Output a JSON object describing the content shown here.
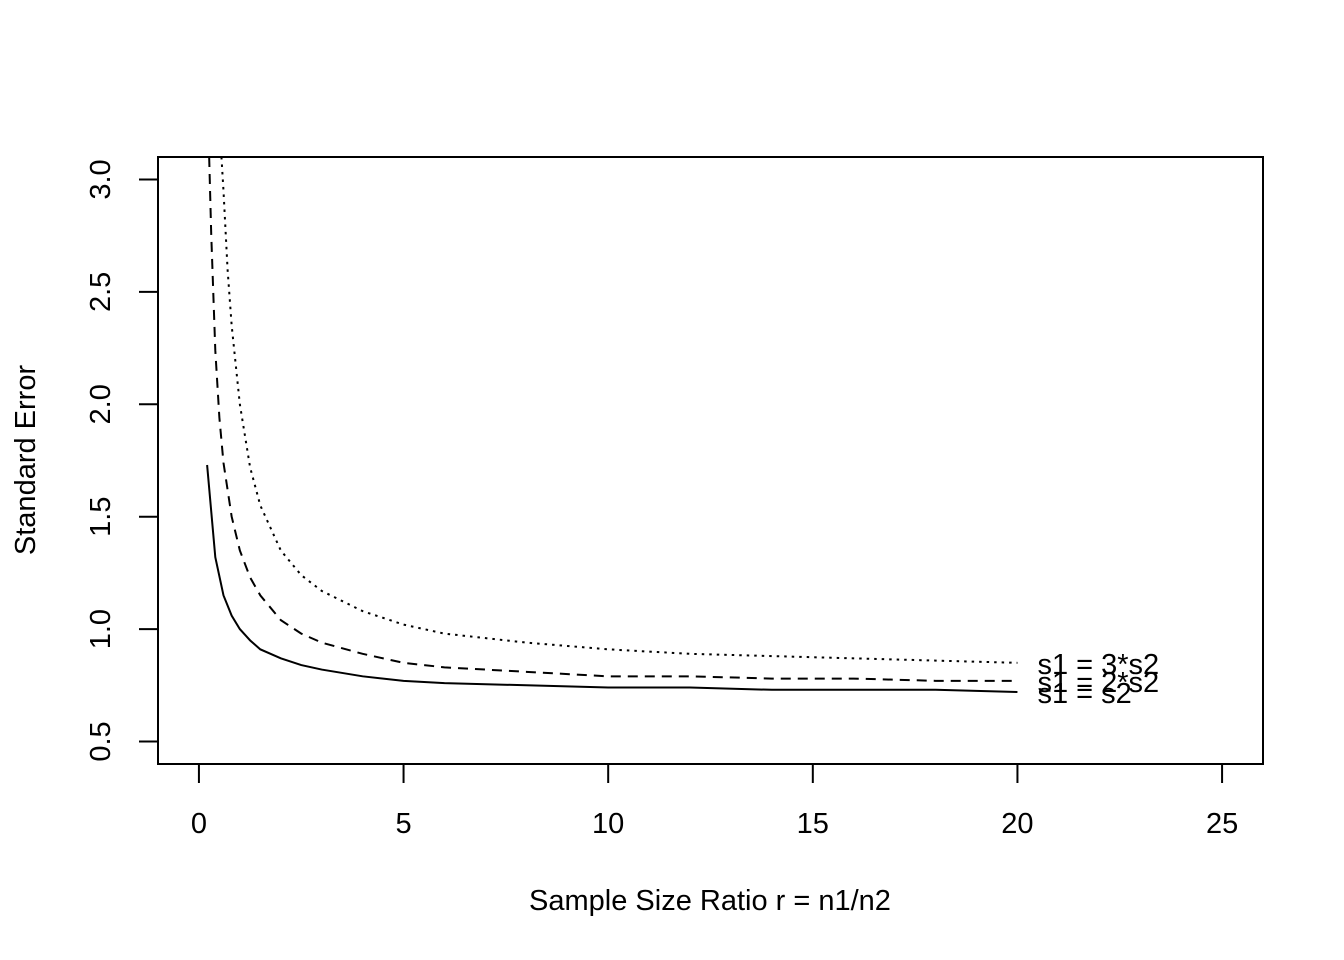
{
  "chart_data": {
    "type": "line",
    "title": "",
    "xlabel": "Sample Size Ratio r = n1/n2",
    "ylabel": "Standard Error",
    "xlim": [
      -1,
      26
    ],
    "ylim": [
      0.4,
      3.1
    ],
    "xticks": [
      0,
      5,
      10,
      15,
      20,
      25
    ],
    "yticks": [
      0.5,
      1.0,
      1.5,
      2.0,
      2.5,
      3.0
    ],
    "xtick_labels": [
      "0",
      "5",
      "10",
      "15",
      "20",
      "25"
    ],
    "ytick_labels": [
      "0.5",
      "1.0",
      "1.5",
      "2.0",
      "2.5",
      "3.0"
    ],
    "grid": false,
    "legend": "none",
    "series": [
      {
        "name": "s1 = s2",
        "line_style": "solid",
        "x": [
          0.2,
          0.4,
          0.6,
          0.8,
          1,
          1.25,
          1.5,
          2,
          2.5,
          3,
          4,
          5,
          6,
          8,
          10,
          12,
          14,
          16,
          18,
          20
        ],
        "y": [
          1.73,
          1.32,
          1.15,
          1.06,
          1.0,
          0.95,
          0.91,
          0.87,
          0.84,
          0.82,
          0.79,
          0.77,
          0.76,
          0.75,
          0.74,
          0.74,
          0.73,
          0.73,
          0.73,
          0.72
        ]
      },
      {
        "name": "s1 = 2*s2",
        "line_style": "dashed",
        "x": [
          0.25,
          0.3,
          0.4,
          0.5,
          0.6,
          0.8,
          1,
          1.25,
          1.5,
          2,
          2.5,
          3,
          4,
          5,
          6,
          8,
          10,
          12,
          14,
          16,
          18,
          20
        ],
        "y": [
          3.1,
          2.76,
          2.24,
          1.94,
          1.74,
          1.5,
          1.35,
          1.23,
          1.15,
          1.04,
          0.98,
          0.94,
          0.89,
          0.85,
          0.83,
          0.81,
          0.79,
          0.79,
          0.78,
          0.78,
          0.77,
          0.77
        ]
      },
      {
        "name": "s1 = 3*s2",
        "line_style": "dotted",
        "x": [
          0.55,
          0.6,
          0.7,
          0.8,
          1,
          1.25,
          1.5,
          2,
          2.5,
          3,
          4,
          5,
          6,
          8,
          10,
          12,
          14,
          16,
          18,
          20
        ],
        "y": [
          3.1,
          2.95,
          2.6,
          2.35,
          2.0,
          1.72,
          1.55,
          1.35,
          1.24,
          1.17,
          1.08,
          1.02,
          0.98,
          0.94,
          0.91,
          0.89,
          0.88,
          0.87,
          0.86,
          0.85
        ]
      }
    ]
  }
}
